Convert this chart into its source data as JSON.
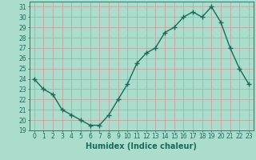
{
  "x": [
    0,
    1,
    2,
    3,
    4,
    5,
    6,
    7,
    8,
    9,
    10,
    11,
    12,
    13,
    14,
    15,
    16,
    17,
    18,
    19,
    20,
    21,
    22,
    23
  ],
  "y": [
    24.0,
    23.0,
    22.5,
    21.0,
    20.5,
    20.0,
    19.5,
    19.5,
    20.5,
    22.0,
    23.5,
    25.5,
    26.5,
    27.0,
    28.5,
    29.0,
    30.0,
    30.5,
    30.0,
    31.0,
    29.5,
    27.0,
    25.0,
    23.5
  ],
  "line_color": "#1a6b5a",
  "marker": "+",
  "marker_size": 4,
  "line_width": 1.0,
  "xlabel": "Humidex (Indice chaleur)",
  "xlim": [
    -0.5,
    23.5
  ],
  "ylim": [
    19,
    31.5
  ],
  "yticks": [
    19,
    20,
    21,
    22,
    23,
    24,
    25,
    26,
    27,
    28,
    29,
    30,
    31
  ],
  "xticks": [
    0,
    1,
    2,
    3,
    4,
    5,
    6,
    7,
    8,
    9,
    10,
    11,
    12,
    13,
    14,
    15,
    16,
    17,
    18,
    19,
    20,
    21,
    22,
    23
  ],
  "bg_color": "#aaddcc",
  "grid_color": "#cc9999",
  "tick_fontsize": 5.5,
  "label_fontsize": 7
}
